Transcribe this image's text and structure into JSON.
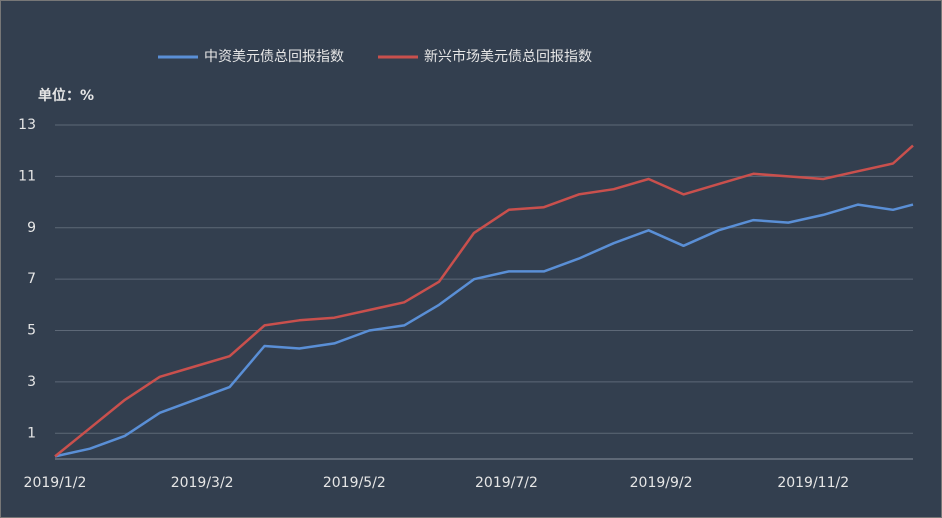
{
  "chart_data": {
    "type": "line",
    "unit_label": "单位：%",
    "x": [
      "2019/1/2",
      "2019/1/16",
      "2019/1/30",
      "2019/2/13",
      "2019/2/27",
      "2019/3/13",
      "2019/3/27",
      "2019/4/10",
      "2019/4/24",
      "2019/5/8",
      "2019/5/22",
      "2019/6/5",
      "2019/6/19",
      "2019/7/3",
      "2019/7/17",
      "2019/7/31",
      "2019/8/14",
      "2019/8/28",
      "2019/9/11",
      "2019/9/25",
      "2019/10/9",
      "2019/10/23",
      "2019/11/6",
      "2019/11/20",
      "2019/12/4",
      "2019/12/12"
    ],
    "series": [
      {
        "name": "中资美元债总回报指数",
        "color": "#5a8fd6",
        "values": [
          0.1,
          0.4,
          0.9,
          1.8,
          2.3,
          2.8,
          4.4,
          4.3,
          4.5,
          5.0,
          5.2,
          6.0,
          7.0,
          7.3,
          7.3,
          7.8,
          8.4,
          8.9,
          8.3,
          8.9,
          9.3,
          9.2,
          9.5,
          9.9,
          9.7,
          9.9
        ]
      },
      {
        "name": "新兴市场美元债总回报指数",
        "color": "#c9504d",
        "values": [
          0.1,
          1.2,
          2.3,
          3.2,
          3.6,
          4.0,
          5.2,
          5.4,
          5.5,
          5.8,
          6.1,
          6.9,
          8.8,
          9.7,
          9.8,
          10.3,
          10.5,
          10.9,
          10.3,
          10.7,
          11.1,
          11.0,
          10.9,
          11.2,
          11.5,
          12.2
        ]
      }
    ],
    "xticks": [
      "2019/1/2",
      "2019/3/2",
      "2019/5/2",
      "2019/7/2",
      "2019/9/2",
      "2019/11/2"
    ],
    "ylim": [
      0,
      13
    ],
    "yticks": [
      1,
      3,
      5,
      7,
      9,
      11,
      13
    ],
    "grid": true
  }
}
